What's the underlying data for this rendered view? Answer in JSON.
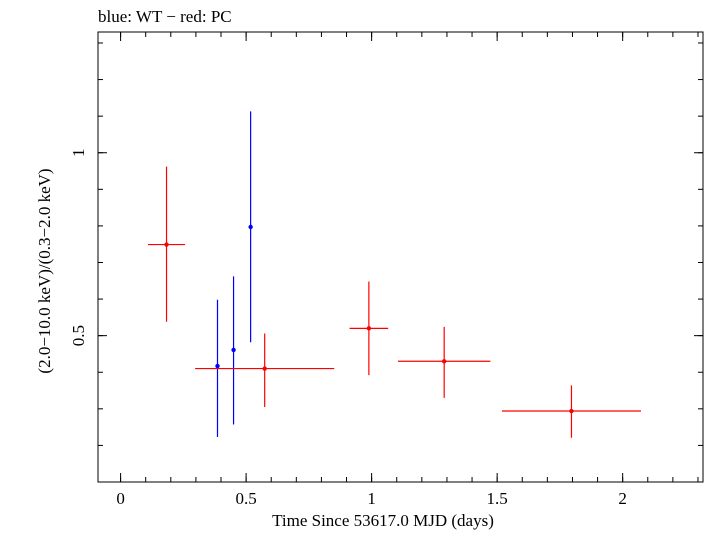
{
  "chart_data": {
    "type": "scatter",
    "title": "blue: WT − red: PC",
    "xlabel": "Time Since 53617.0 MJD (days)",
    "ylabel": "(2.0−10.0 keV)/(0.3−2.0 keV)",
    "xlim": [
      -0.09,
      2.32
    ],
    "ylim": [
      0.1,
      1.33
    ],
    "xticks": [
      {
        "value": 0,
        "label": "0"
      },
      {
        "value": 0.5,
        "label": "0.5"
      },
      {
        "value": 1,
        "label": "1"
      },
      {
        "value": 1.5,
        "label": "1.5"
      },
      {
        "value": 2,
        "label": "2"
      }
    ],
    "yticks": [
      {
        "value": 0.5,
        "label": "0.5"
      },
      {
        "value": 1,
        "label": "1"
      }
    ],
    "xminor_step": 0.1,
    "yminor_step": 0.1,
    "grid": false,
    "series": [
      {
        "color": "#0000ff",
        "points": [
          {
            "x": 0.386,
            "y": 0.417,
            "xerr": 0.004,
            "ylo": 0.223,
            "yhi": 0.598
          },
          {
            "x": 0.45,
            "y": 0.461,
            "xerr": 0.004,
            "ylo": 0.257,
            "yhi": 0.662
          },
          {
            "x": 0.518,
            "y": 0.797,
            "xerr": 0.004,
            "ylo": 0.482,
            "yhi": 1.113
          }
        ]
      },
      {
        "color": "#ff0000",
        "points": [
          {
            "x": 0.183,
            "y": 0.749,
            "xerr": 0.074,
            "ylo": 0.538,
            "yhi": 0.962
          },
          {
            "x": 0.574,
            "y": 0.41,
            "xerr": 0.277,
            "ylo": 0.305,
            "yhi": 0.506
          },
          {
            "x": 0.989,
            "y": 0.52,
            "xerr": 0.077,
            "ylo": 0.392,
            "yhi": 0.648
          },
          {
            "x": 1.289,
            "y": 0.43,
            "xerr": 0.184,
            "ylo": 0.33,
            "yhi": 0.524
          },
          {
            "x": 1.796,
            "y": 0.294,
            "xerr": 0.277,
            "ylo": 0.221,
            "yhi": 0.364
          }
        ]
      }
    ]
  }
}
